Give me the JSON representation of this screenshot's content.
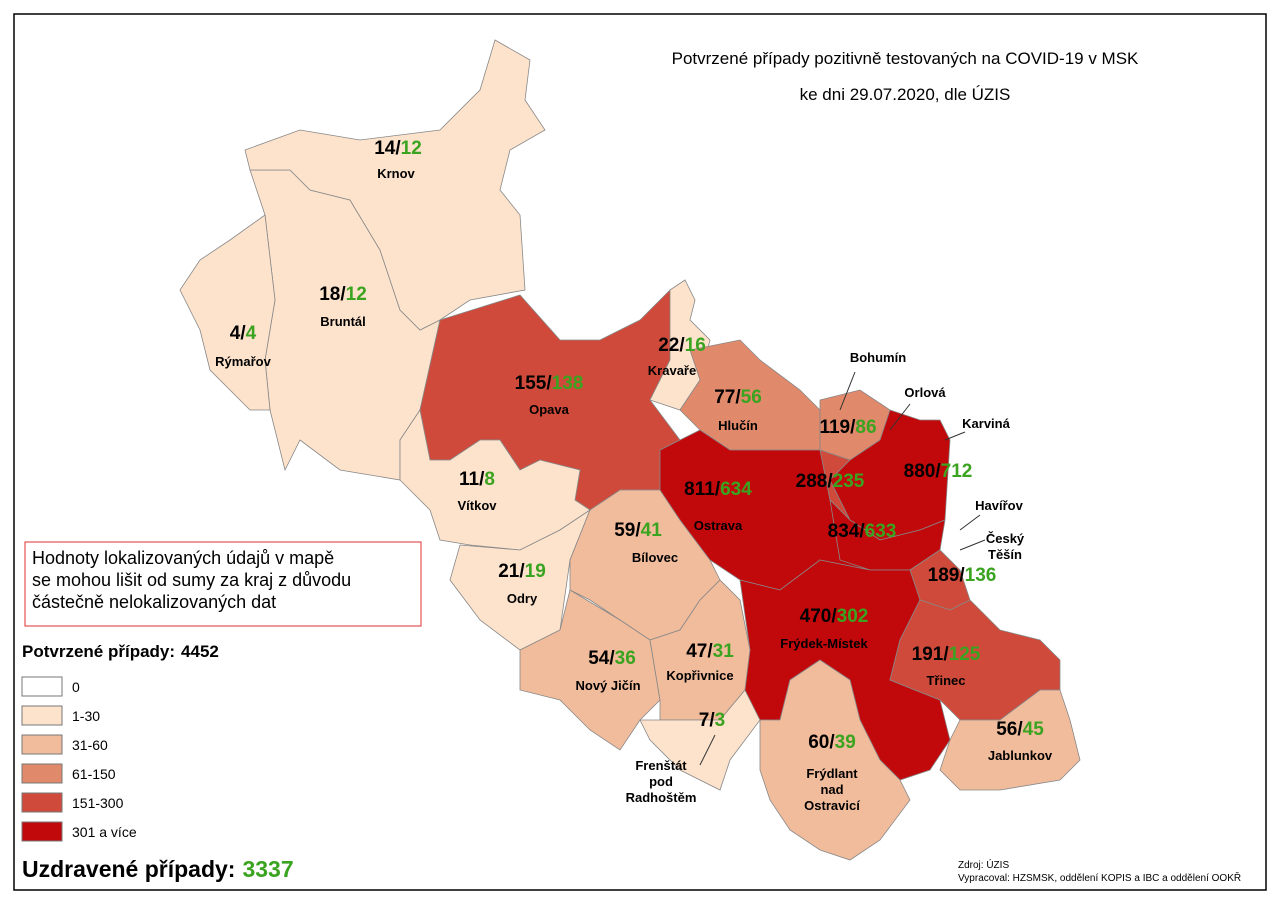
{
  "header": {
    "lines": [
      "Potvrzené případy pozitivně testovaných na COVID-19 v MSK",
      "ke dni 29.07.2020, dle ÚZIS"
    ]
  },
  "separator": "/",
  "regions": [
    {
      "name": [
        "Bruntál"
      ],
      "confirmed": 18,
      "recovered": 12,
      "color": "#fde3cc"
    },
    {
      "name": [
        "Rýmařov"
      ],
      "confirmed": 4,
      "recovered": 4,
      "color": "#fde3cc"
    },
    {
      "name": [
        "Krnov"
      ],
      "confirmed": 14,
      "recovered": 12,
      "color": "#fde3cc"
    },
    {
      "name": [
        "Opava"
      ],
      "confirmed": 155,
      "recovered": 138,
      "color": "#cf4a3a"
    },
    {
      "name": [
        "Kravaře"
      ],
      "confirmed": 22,
      "recovered": 16,
      "color": "#fde3cc"
    },
    {
      "name": [
        "Hlučín"
      ],
      "confirmed": 77,
      "recovered": 56,
      "color": "#e0896b"
    },
    {
      "name": [
        "Vítkov"
      ],
      "confirmed": 11,
      "recovered": 8,
      "color": "#fde3cc"
    },
    {
      "name": [
        "Odry"
      ],
      "confirmed": 21,
      "recovered": 19,
      "color": "#fde3cc"
    },
    {
      "name": [
        "Bílovec"
      ],
      "confirmed": 59,
      "recovered": 41,
      "color": "#f1bc9c"
    },
    {
      "name": [
        "Nový Jičín"
      ],
      "confirmed": 54,
      "recovered": 36,
      "color": "#f1bc9c"
    },
    {
      "name": [
        "Kopřivnice"
      ],
      "confirmed": 47,
      "recovered": 31,
      "color": "#f1bc9c"
    },
    {
      "name": [
        "Frenštát",
        "pod",
        "Radhoštěm"
      ],
      "confirmed": 7,
      "recovered": 3,
      "color": "#fde3cc"
    },
    {
      "name": [
        "Ostrava"
      ],
      "confirmed": 811,
      "recovered": 634,
      "color": "#c1080b"
    },
    {
      "name": [
        "Bohumín"
      ],
      "confirmed": 119,
      "recovered": 86,
      "color": "#e0896b"
    },
    {
      "name": [
        "Orlová"
      ],
      "confirmed": 288,
      "recovered": 235,
      "color": "#cf4a3a"
    },
    {
      "name": [
        "Karviná"
      ],
      "confirmed": 880,
      "recovered": 712,
      "color": "#c1080b"
    },
    {
      "name": [
        "Havířov"
      ],
      "confirmed": 834,
      "recovered": 633,
      "color": "#c1080b"
    },
    {
      "name": [
        "Český",
        "Těšín"
      ],
      "confirmed": 189,
      "recovered": 136,
      "color": "#cf4a3a"
    },
    {
      "name": [
        "Frýdek-Místek"
      ],
      "confirmed": 470,
      "recovered": 302,
      "color": "#c1080b"
    },
    {
      "name": [
        "Frýdlant",
        "nad",
        "Ostravicí"
      ],
      "confirmed": 60,
      "recovered": 39,
      "color": "#f1bc9c"
    },
    {
      "name": [
        "Třinec"
      ],
      "confirmed": 191,
      "recovered": 125,
      "color": "#cf4a3a"
    },
    {
      "name": [
        "Jablunkov"
      ],
      "confirmed": 56,
      "recovered": 45,
      "color": "#f1bc9c"
    }
  ],
  "note": {
    "lines": [
      "Hodnoty lokalizovaných údajů v mapě",
      "se mohou lišit od sumy za kraj z důvodu",
      "částečně nelokalizovaných dat"
    ]
  },
  "legend": {
    "title": "Potvrzené případy:",
    "total": 4452,
    "items": [
      {
        "label": "0",
        "color": "#ffffff"
      },
      {
        "label": "1-30",
        "color": "#fde3cc"
      },
      {
        "label": "31-60",
        "color": "#f1bc9c"
      },
      {
        "label": "61-150",
        "color": "#e0896b"
      },
      {
        "label": "151-300",
        "color": "#cf4a3a"
      },
      {
        "label": "301 a více",
        "color": "#c1080b"
      }
    ]
  },
  "recovered": {
    "title": "Uzdravené případy:",
    "total": 3337
  },
  "source": {
    "lines": [
      "Zdroj: ÚZIS",
      "Vypracoval: HZSMSK, oddělení KOPIS a IBC a oddělení OOKŘ"
    ]
  }
}
